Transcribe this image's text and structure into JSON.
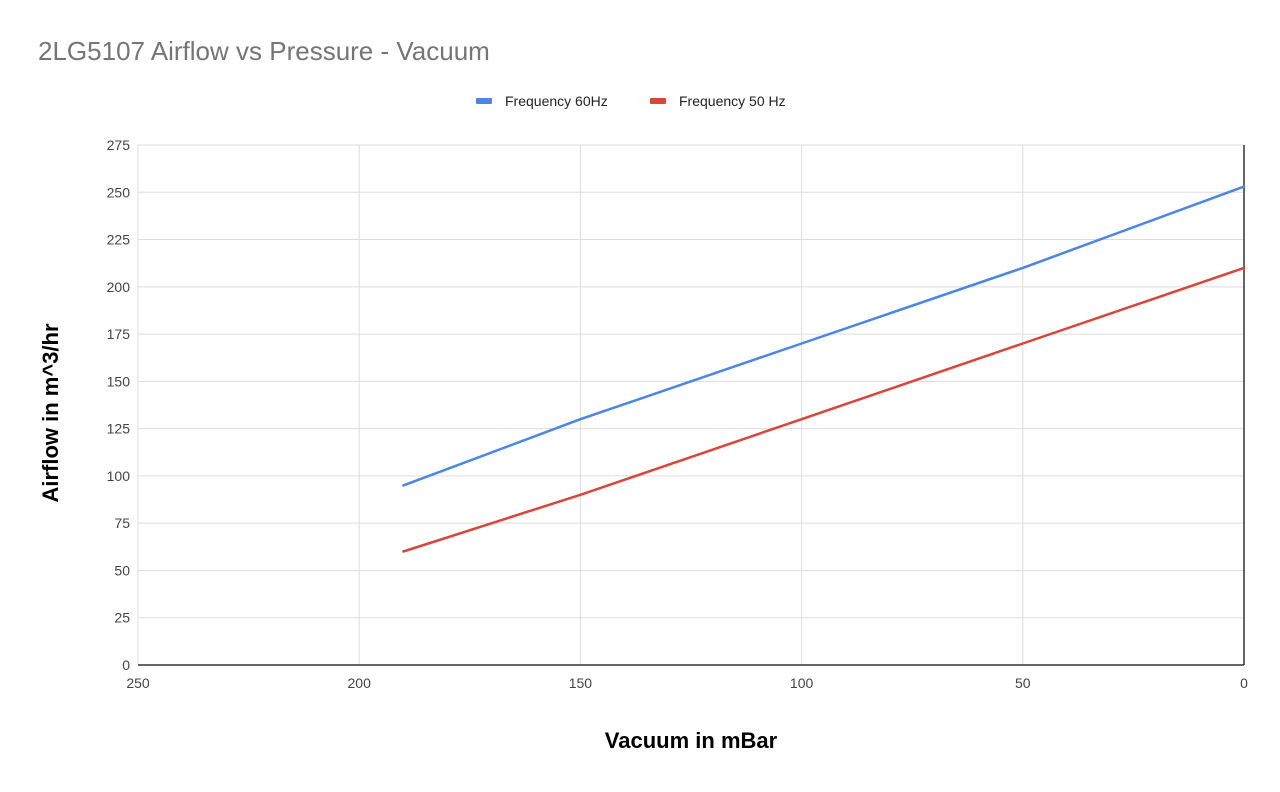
{
  "chart_data": {
    "type": "line",
    "title": "2LG5107 Airflow vs Pressure - Vacuum",
    "xlabel": "Vacuum in mBar",
    "ylabel": "Airflow in m^3/hr",
    "x_reversed": true,
    "xlim": [
      0,
      250
    ],
    "ylim": [
      0,
      275
    ],
    "x_ticks": [
      250,
      200,
      150,
      100,
      50,
      0
    ],
    "y_ticks": [
      0,
      25,
      50,
      75,
      100,
      125,
      150,
      175,
      200,
      225,
      250,
      275
    ],
    "grid": true,
    "legend_position": "top",
    "series": [
      {
        "name": "Frequency 60Hz",
        "color": "#4a86e8",
        "points": [
          [
            190,
            95
          ],
          [
            150,
            130
          ],
          [
            100,
            170
          ],
          [
            50,
            210
          ],
          [
            0,
            253
          ]
        ]
      },
      {
        "name": "Frequency 50 Hz",
        "color": "#db4437",
        "points": [
          [
            190,
            60
          ],
          [
            150,
            90
          ],
          [
            100,
            130
          ],
          [
            50,
            170
          ],
          [
            0,
            210
          ]
        ]
      }
    ]
  }
}
